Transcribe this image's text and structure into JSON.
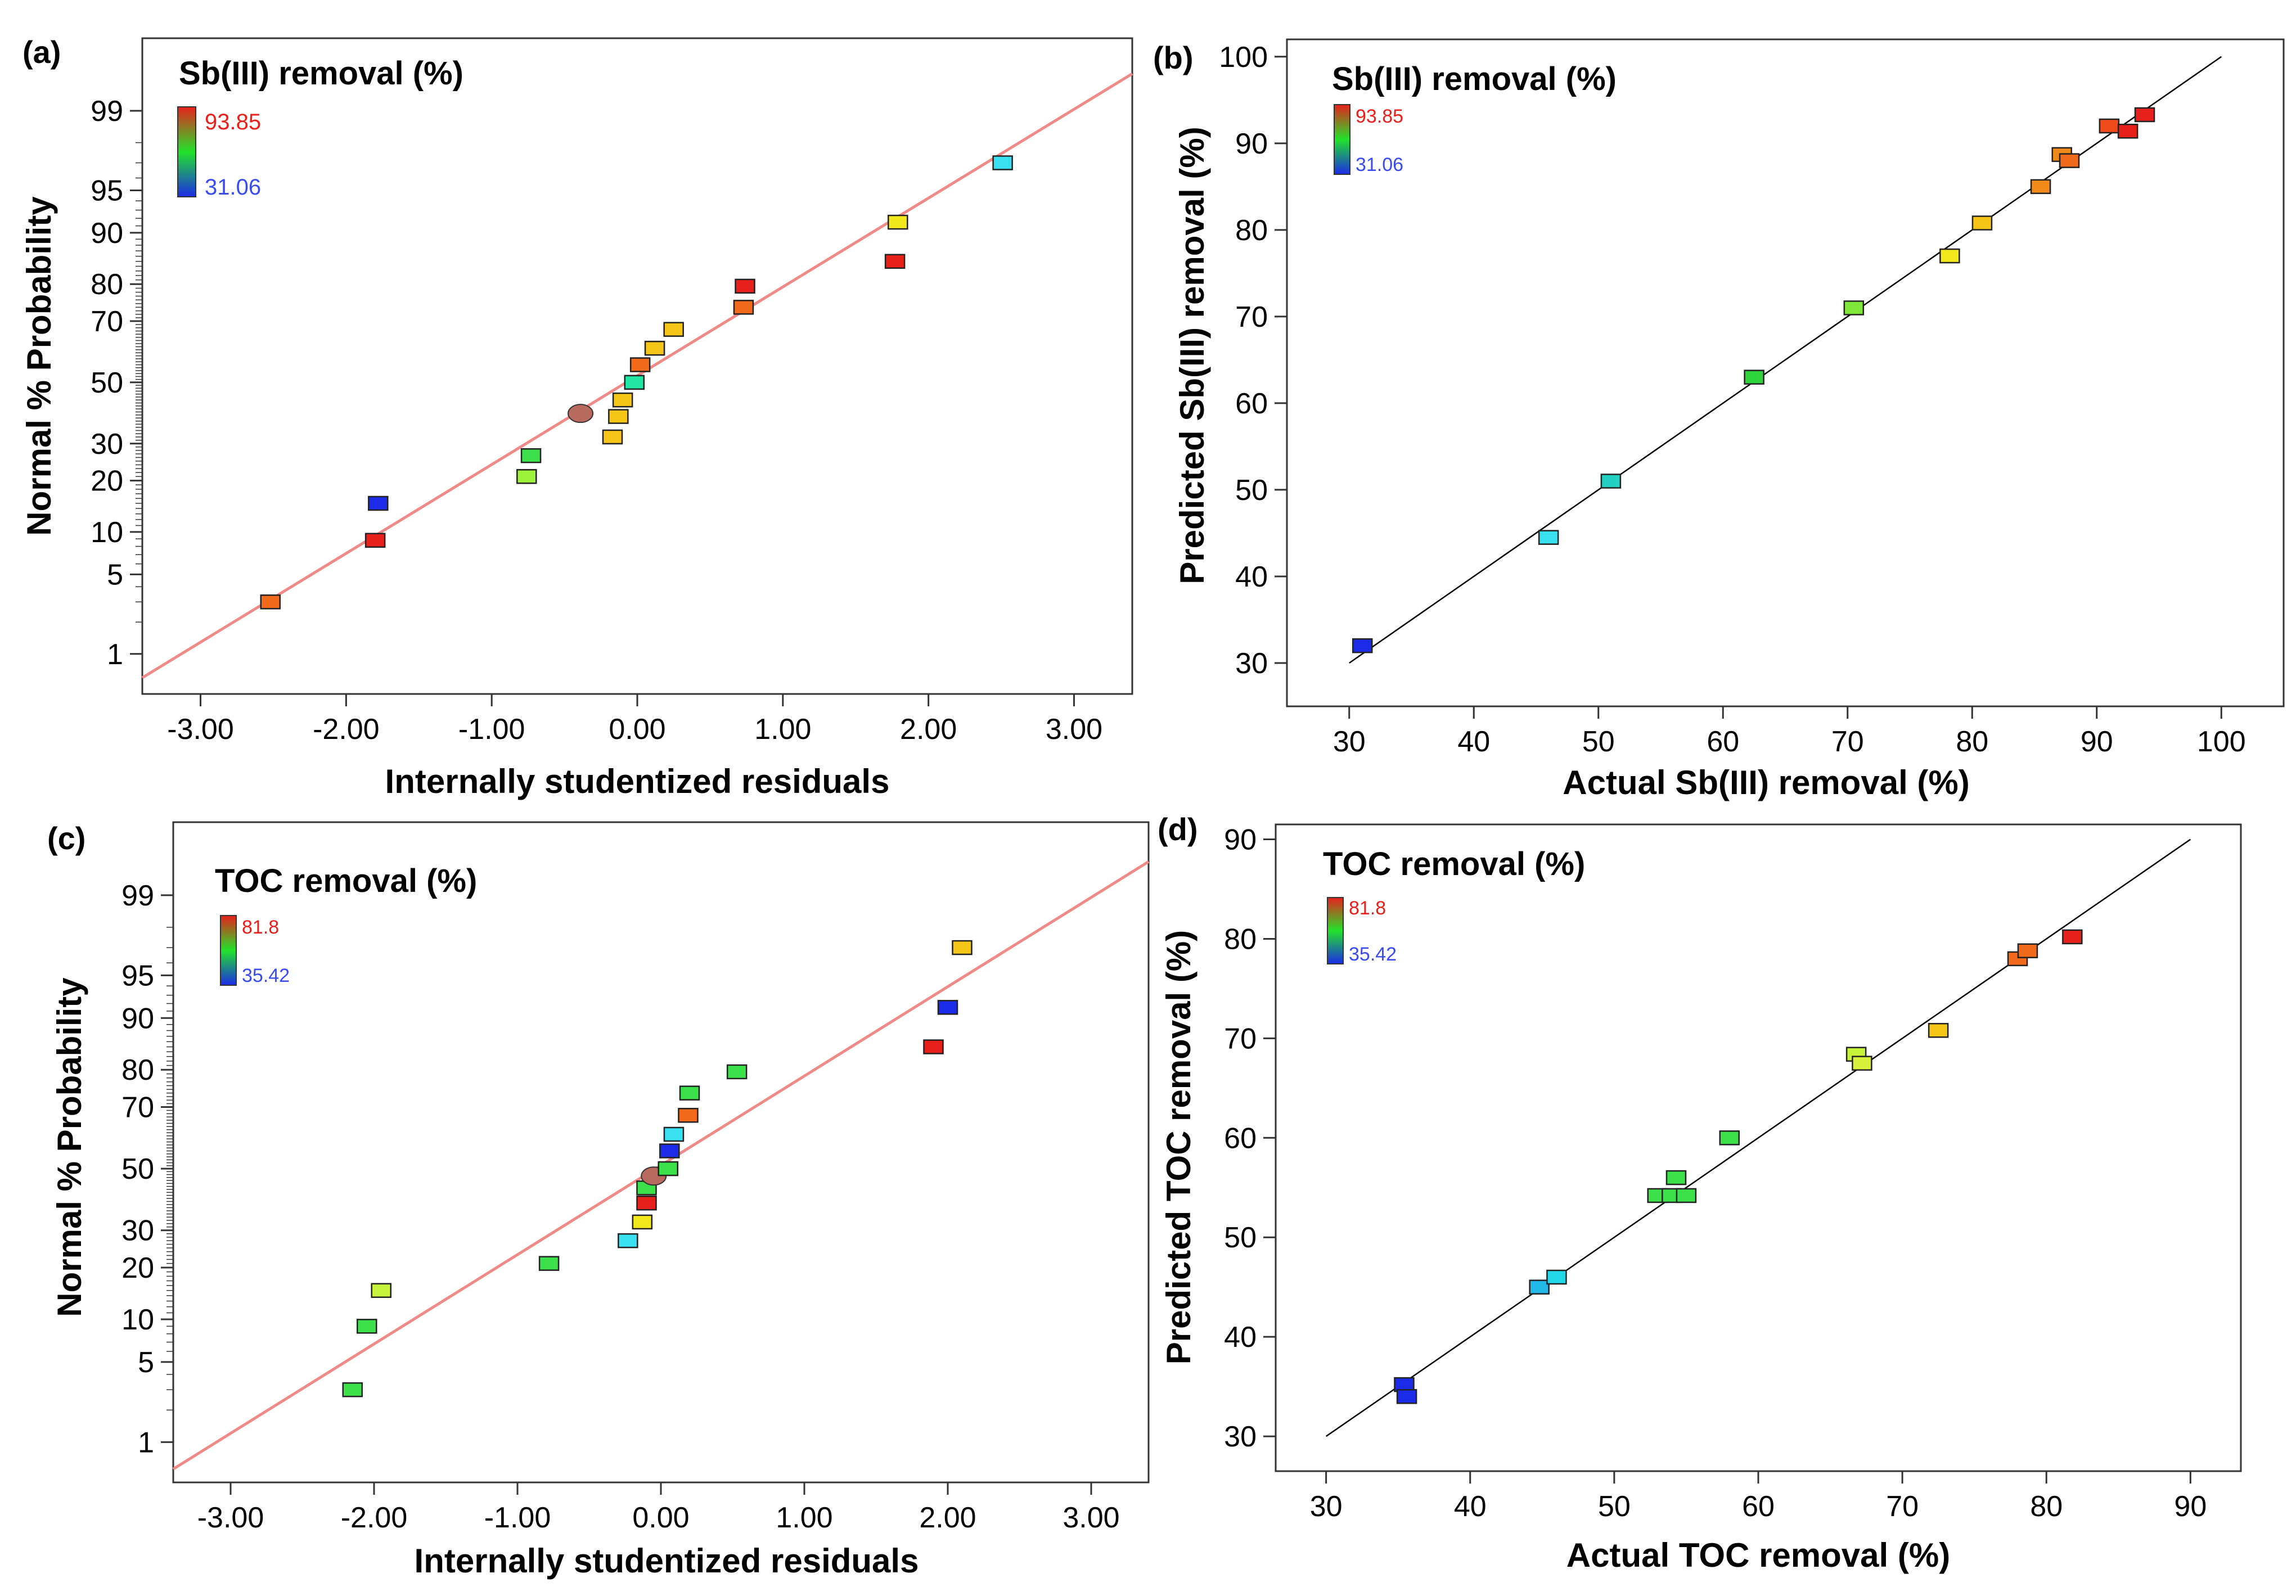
{
  "chart_data": [
    {
      "panel": "(a)",
      "type": "scatter",
      "plot": "normal_probability",
      "title": "Sb(III) removal (%)",
      "xlabel": "Internally studentized residuals",
      "ylabel": "Normal % Probability",
      "xlim": [
        -3.4,
        3.4
      ],
      "xticks": [
        -3,
        -2,
        -1,
        0,
        1,
        2,
        3
      ],
      "xtick_labels": [
        "-3.00",
        "-2.00",
        "-1.00",
        "0.00",
        "1.00",
        "2.00",
        "3.00"
      ],
      "yticks": [
        1,
        5,
        10,
        20,
        30,
        50,
        70,
        80,
        90,
        95,
        99
      ],
      "ytick_labels": [
        "1",
        "5",
        "10",
        "20",
        "30",
        "50",
        "70",
        "80",
        "90",
        "95",
        "99"
      ],
      "ylim_probability": [
        0.38,
        99.84
      ],
      "legend": {
        "high_label": "93.85",
        "low_label": "31.06",
        "high_color": "#e8201c",
        "low_color": "#1b2be8"
      },
      "reference_line": {
        "x1": -3.4,
        "x2": 3.4,
        "y1_probability": 0.57,
        "y2_probability": 99.59,
        "color": "#f08a86"
      },
      "points": [
        {
          "x": -2.52,
          "p": 3.0,
          "color": "#f26a1b"
        },
        {
          "x": -1.8,
          "p": 8.8,
          "color": "#e8201c"
        },
        {
          "x": -1.78,
          "p": 15.0,
          "color": "#1b2be8"
        },
        {
          "x": -0.76,
          "p": 21.0,
          "color": "#9cf23a"
        },
        {
          "x": -0.73,
          "p": 26.5,
          "color": "#3be04a"
        },
        {
          "x": -0.39,
          "p": 39.5,
          "color": "#b86a5e",
          "shape": "ellipse"
        },
        {
          "x": -0.17,
          "p": 32.0,
          "color": "#f5c518"
        },
        {
          "x": -0.13,
          "p": 38.5,
          "color": "#f5c518"
        },
        {
          "x": -0.1,
          "p": 44.0,
          "color": "#f5c518"
        },
        {
          "x": -0.02,
          "p": 50.0,
          "color": "#23e6a5"
        },
        {
          "x": 0.02,
          "p": 56.0,
          "color": "#f26a1b"
        },
        {
          "x": 0.12,
          "p": 61.5,
          "color": "#f5c518"
        },
        {
          "x": 0.25,
          "p": 67.5,
          "color": "#f5c518"
        },
        {
          "x": 0.73,
          "p": 74.0,
          "color": "#f26a1b"
        },
        {
          "x": 0.74,
          "p": 79.5,
          "color": "#e8201c"
        },
        {
          "x": 1.77,
          "p": 85.0,
          "color": "#e8201c"
        },
        {
          "x": 1.79,
          "p": 91.5,
          "color": "#f2e91d"
        },
        {
          "x": 2.51,
          "p": 97.0,
          "color": "#39e1f0"
        }
      ]
    },
    {
      "panel": "(b)",
      "type": "scatter",
      "plot": "predicted_vs_actual",
      "title": "Sb(III) removal (%)",
      "xlabel": "Actual Sb(III) removal (%)",
      "ylabel": "Predicted Sb(III) removal (%)",
      "xlim": [
        25,
        105
      ],
      "ylim": [
        25,
        102
      ],
      "xticks": [
        30,
        40,
        50,
        60,
        70,
        80,
        90,
        100
      ],
      "yticks": [
        30,
        40,
        50,
        60,
        70,
        80,
        90,
        100
      ],
      "legend": {
        "high_label": "93.85",
        "low_label": "31.06",
        "high_color": "#e8201c",
        "low_color": "#1b2be8"
      },
      "reference_line": {
        "from": [
          30,
          30
        ],
        "to": [
          100,
          100
        ],
        "color": "#000000"
      },
      "points": [
        {
          "x": 31.06,
          "y": 32.0,
          "color": "#1b2be8"
        },
        {
          "x": 46.0,
          "y": 44.5,
          "color": "#39e1f0"
        },
        {
          "x": 51.0,
          "y": 51.0,
          "color": "#23d1c2"
        },
        {
          "x": 62.5,
          "y": 63.0,
          "color": "#2fd43a"
        },
        {
          "x": 70.5,
          "y": 71.0,
          "color": "#7fe63a"
        },
        {
          "x": 78.2,
          "y": 77.0,
          "color": "#f2e91d"
        },
        {
          "x": 80.8,
          "y": 80.8,
          "color": "#f5c518"
        },
        {
          "x": 85.5,
          "y": 85.0,
          "color": "#f28a1b"
        },
        {
          "x": 87.2,
          "y": 88.7,
          "color": "#f28a1b"
        },
        {
          "x": 87.8,
          "y": 88.0,
          "color": "#f26a1b"
        },
        {
          "x": 91.0,
          "y": 92.0,
          "color": "#ee4a1b"
        },
        {
          "x": 92.5,
          "y": 91.4,
          "color": "#e8201c"
        },
        {
          "x": 93.85,
          "y": 93.3,
          "color": "#e8201c"
        }
      ]
    },
    {
      "panel": "(c)",
      "type": "scatter",
      "plot": "normal_probability",
      "title": "TOC removal (%)",
      "xlabel": "Internally studentized residuals",
      "ylabel": "Normal % Probability",
      "xlim": [
        -3.4,
        3.4
      ],
      "xticks": [
        -3,
        -2,
        -1,
        0,
        1,
        2,
        3
      ],
      "xtick_labels": [
        "-3.00",
        "-2.00",
        "-1.00",
        "0.00",
        "1.00",
        "2.00",
        "3.00"
      ],
      "yticks": [
        1,
        5,
        10,
        20,
        30,
        50,
        70,
        80,
        90,
        95,
        99
      ],
      "ytick_labels": [
        "1",
        "5",
        "10",
        "20",
        "30",
        "50",
        "70",
        "80",
        "90",
        "95",
        "99"
      ],
      "ylim_probability": [
        0.38,
        99.84
      ],
      "legend": {
        "high_label": "81.8",
        "low_label": "35.42",
        "high_color": "#e8201c",
        "low_color": "#1b2be8"
      },
      "reference_line": {
        "x1": -3.4,
        "x2": 3.4,
        "y1_probability": 0.53,
        "y2_probability": 99.55,
        "color": "#f08a86"
      },
      "points": [
        {
          "x": -2.15,
          "p": 3.0,
          "color": "#3be04a"
        },
        {
          "x": -2.05,
          "p": 9.0,
          "color": "#3be04a"
        },
        {
          "x": -1.95,
          "p": 15.0,
          "color": "#c6f23a"
        },
        {
          "x": -0.78,
          "p": 21.0,
          "color": "#3be04a"
        },
        {
          "x": -0.23,
          "p": 27.0,
          "color": "#39e1f0"
        },
        {
          "x": -0.13,
          "p": 32.5,
          "color": "#f2e91d"
        },
        {
          "x": -0.1,
          "p": 38.5,
          "color": "#e8201c"
        },
        {
          "x": -0.1,
          "p": 43.5,
          "color": "#3be04a"
        },
        {
          "x": -0.05,
          "p": 47.5,
          "color": "#b86a5e",
          "shape": "ellipse"
        },
        {
          "x": 0.05,
          "p": 50.0,
          "color": "#3be04a"
        },
        {
          "x": 0.06,
          "p": 56.0,
          "color": "#1b2be8"
        },
        {
          "x": 0.09,
          "p": 61.5,
          "color": "#39e1f0"
        },
        {
          "x": 0.19,
          "p": 67.5,
          "color": "#f26a1b"
        },
        {
          "x": 0.2,
          "p": 74.0,
          "color": "#3be04a"
        },
        {
          "x": 0.53,
          "p": 79.5,
          "color": "#3be04a"
        },
        {
          "x": 1.9,
          "p": 85.0,
          "color": "#e8201c"
        },
        {
          "x": 2.0,
          "p": 91.5,
          "color": "#1b2be8"
        },
        {
          "x": 2.1,
          "p": 97.0,
          "color": "#f5c518"
        }
      ]
    },
    {
      "panel": "(d)",
      "type": "scatter",
      "plot": "predicted_vs_actual",
      "title": "TOC removal (%)",
      "xlabel": "Actual TOC removal (%)",
      "ylabel": "Predicted TOC removal (%)",
      "xlim": [
        26.5,
        93.5
      ],
      "ylim": [
        26.5,
        91.5
      ],
      "xticks": [
        30,
        40,
        50,
        60,
        70,
        80,
        90
      ],
      "yticks": [
        30,
        40,
        50,
        60,
        70,
        80,
        90
      ],
      "legend": {
        "high_label": "81.8",
        "low_label": "35.42",
        "high_color": "#e8201c",
        "low_color": "#1b2be8"
      },
      "reference_line": {
        "from": [
          30,
          30
        ],
        "to": [
          90,
          90
        ],
        "color": "#000000"
      },
      "points": [
        {
          "x": 35.42,
          "y": 35.2,
          "color": "#1b2be8"
        },
        {
          "x": 35.6,
          "y": 34.0,
          "color": "#1b2be8"
        },
        {
          "x": 44.8,
          "y": 45.0,
          "color": "#21b8e8"
        },
        {
          "x": 46.0,
          "y": 46.0,
          "color": "#21d7e8"
        },
        {
          "x": 53.0,
          "y": 54.2,
          "color": "#3be04a"
        },
        {
          "x": 54.0,
          "y": 54.2,
          "color": "#3be04a"
        },
        {
          "x": 54.3,
          "y": 56.0,
          "color": "#3be04a"
        },
        {
          "x": 55.0,
          "y": 54.2,
          "color": "#3be04a"
        },
        {
          "x": 58.0,
          "y": 60.0,
          "color": "#3be04a"
        },
        {
          "x": 66.8,
          "y": 68.4,
          "color": "#c6f23a"
        },
        {
          "x": 67.2,
          "y": 67.5,
          "color": "#d6f23a"
        },
        {
          "x": 72.5,
          "y": 70.8,
          "color": "#f5c518"
        },
        {
          "x": 78.0,
          "y": 78.0,
          "color": "#f26a1b"
        },
        {
          "x": 78.7,
          "y": 78.8,
          "color": "#f26a1b"
        },
        {
          "x": 81.8,
          "y": 80.2,
          "color": "#e8201c"
        }
      ]
    }
  ]
}
